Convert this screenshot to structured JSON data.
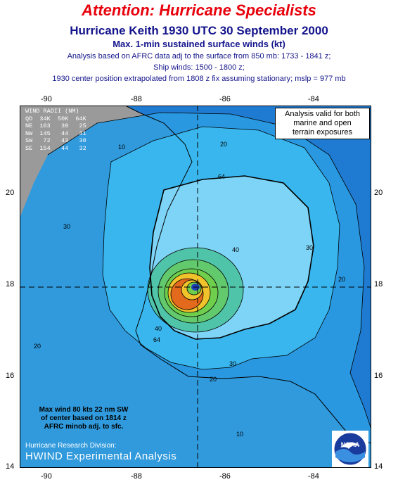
{
  "header": {
    "attention": "Attention:  Hurricane Specialists",
    "title": "Hurricane Keith 1930 UTC 30 September 2000",
    "subtitle": "Max. 1-min sustained surface winds (kt)",
    "lines": [
      "Analysis based on AFRC data adj to the surface from 850 mb: 1733 - 1841 z;",
      "Ship winds: 1500 - 1800 z;",
      "1930  center position extrapolated from 1808 z fix assuming stationary; mslp = 977 mb"
    ]
  },
  "axes": {
    "lon_ticks": [
      "-90",
      "-88",
      "-86",
      "-84"
    ],
    "lat_ticks": [
      "20",
      "18",
      "16",
      "14"
    ]
  },
  "wind_radii": {
    "title": "WIND RADII (NM)",
    "header": "QD  34K  50K  64K",
    "rows": [
      "NE  163   39   25",
      "NW  145   44   31",
      "SW   72   43   30",
      "SE  154   44   32"
    ]
  },
  "validity_note": [
    "Analysis valid for both",
    "marine and open",
    "terrain exposures"
  ],
  "max_wind_note": [
    "Max wind 80 kts 22 nm SW",
    "of center based on 1814 z",
    "AFRC minob adj. to sfc."
  ],
  "footer": {
    "division": "Hurricane Research Division:",
    "product": "HWIND Experimental Analysis"
  },
  "contour_labels": [
    "10",
    "10",
    "20",
    "20",
    "20",
    "20",
    "30",
    "30",
    "30",
    "40",
    "40",
    "64",
    "64"
  ],
  "logo_text": "NOAA",
  "colors": {
    "ocean": "#1f7bd1",
    "wind_20": "#2a9ae0",
    "wind_30": "#3ab6ee",
    "wind_34": "#7ed4f6",
    "wind_50": "#4fc4a8",
    "wind_60": "#6fcf4c",
    "wind_70": "#f0c22b",
    "wind_80": "#e36a1d",
    "land": "#c9c9c9",
    "title_red": "#e8000b",
    "title_blue": "#14148c"
  }
}
